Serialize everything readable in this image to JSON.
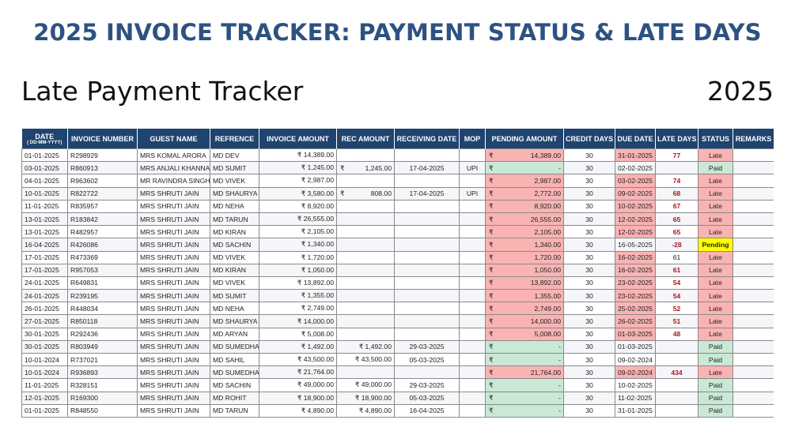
{
  "header": {
    "title": "2025 INVOICE TRACKER: PAYMENT STATUS & LATE DAYS",
    "subtitle": "Late Payment Tracker",
    "year": "2025"
  },
  "currency": "₹",
  "colors": {
    "title": "#2d5282",
    "header_bg": "#1f446f",
    "late": "#f9b3b3",
    "paid": "#c9e8d6",
    "pending": "#ffff00",
    "late_days_text": "#b4141b"
  },
  "table": {
    "columns": [
      "DATE",
      "INVOICE NUMBER",
      "GUEST NAME",
      "REFRENCE",
      "INVOICE AMOUNT",
      "REC AMOUNT",
      "RECEIVING DATE",
      "MOP",
      "PENDING AMOUNT",
      "CREDIT DAYS",
      "DUE DATE",
      "LATE DAYS",
      "STATUS",
      "REMARKS"
    ],
    "date_format": "( DD-MM-YYYY)",
    "rows": [
      {
        "date": "01-01-2025",
        "invoice": "R298929",
        "guest": "MRS KOMAL ARORA",
        "ref": "MD DEV",
        "inv_amount": "₹ 14,389.00",
        "rec_amount": "",
        "rec_amount_sep": false,
        "rec_date": "",
        "mop": "",
        "pending": "14,389.00",
        "credit": "30",
        "due": "31-01-2025",
        "late": "77",
        "late_hi": true,
        "status": "Late",
        "remarks": ""
      },
      {
        "date": "03-01-2025",
        "invoice": "R860913",
        "guest": "MRS ANJALI KHANNA",
        "ref": "MD SUMIT",
        "inv_amount": "₹ 1,245.00",
        "rec_amount": "1,245.00",
        "rec_amount_sep": true,
        "rec_date": "17-04-2025",
        "mop": "UPI",
        "pending": "-",
        "credit": "30",
        "due": "02-02-2025",
        "late": "",
        "late_hi": false,
        "status": "Paid",
        "remarks": ""
      },
      {
        "date": "04-01-2025",
        "invoice": "R963602",
        "guest": "MR RAVINDRA SINGH",
        "ref": "MD VIVEK",
        "inv_amount": "₹ 2,987.00",
        "rec_amount": "",
        "rec_amount_sep": false,
        "rec_date": "",
        "mop": "",
        "pending": "2,987.00",
        "credit": "30",
        "due": "03-02-2025",
        "late": "74",
        "late_hi": true,
        "status": "Late",
        "remarks": ""
      },
      {
        "date": "10-01-2025",
        "invoice": "R822722",
        "guest": "MRS SHRUTI JAIN",
        "ref": "MD SHAURYA",
        "inv_amount": "₹ 3,580.00",
        "rec_amount": "808.00",
        "rec_amount_sep": true,
        "rec_date": "17-04-2025",
        "mop": "UPI",
        "pending": "2,772.00",
        "credit": "30",
        "due": "09-02-2025",
        "late": "68",
        "late_hi": true,
        "status": "Late",
        "remarks": ""
      },
      {
        "date": "11-01-2025",
        "invoice": "R835957",
        "guest": "MRS SHRUTI JAIN",
        "ref": "MD NEHA",
        "inv_amount": "₹ 8,920.00",
        "rec_amount": "",
        "rec_amount_sep": false,
        "rec_date": "",
        "mop": "",
        "pending": "8,920.00",
        "credit": "30",
        "due": "10-02-2025",
        "late": "67",
        "late_hi": true,
        "status": "Late",
        "remarks": ""
      },
      {
        "date": "13-01-2025",
        "invoice": "R183842",
        "guest": "MRS SHRUTI JAIN",
        "ref": "MD TARUN",
        "inv_amount": "₹ 26,555.00",
        "rec_amount": "",
        "rec_amount_sep": false,
        "rec_date": "",
        "mop": "",
        "pending": "26,555.00",
        "credit": "30",
        "due": "12-02-2025",
        "late": "65",
        "late_hi": true,
        "status": "Late",
        "remarks": ""
      },
      {
        "date": "13-01-2025",
        "invoice": "R482957",
        "guest": "MRS SHRUTI JAIN",
        "ref": "MD KIRAN",
        "inv_amount": "₹ 2,105.00",
        "rec_amount": "",
        "rec_amount_sep": false,
        "rec_date": "",
        "mop": "",
        "pending": "2,105.00",
        "credit": "30",
        "due": "12-02-2025",
        "late": "65",
        "late_hi": true,
        "status": "Late",
        "remarks": ""
      },
      {
        "date": "16-04-2025",
        "invoice": "R426086",
        "guest": "MRS SHRUTI JAIN",
        "ref": "MD SACHIN",
        "inv_amount": "₹ 1,340.00",
        "rec_amount": "",
        "rec_amount_sep": false,
        "rec_date": "",
        "mop": "",
        "pending": "1,340.00",
        "credit": "30",
        "due": "16-05-2025",
        "late": "-28",
        "late_hi": true,
        "status": "Pending",
        "remarks": ""
      },
      {
        "date": "17-01-2025",
        "invoice": "R473369",
        "guest": "MRS SHRUTI JAIN",
        "ref": "MD VIVEK",
        "inv_amount": "₹ 1,720.00",
        "rec_amount": "",
        "rec_amount_sep": false,
        "rec_date": "",
        "mop": "",
        "pending": "1,720.00",
        "credit": "30",
        "due": "16-02-2025",
        "late": "61",
        "late_hi": false,
        "status": "Late",
        "remarks": ""
      },
      {
        "date": "17-01-2025",
        "invoice": "R957053",
        "guest": "MRS SHRUTI JAIN",
        "ref": "MD KIRAN",
        "inv_amount": "₹ 1,050.00",
        "rec_amount": "",
        "rec_amount_sep": false,
        "rec_date": "",
        "mop": "",
        "pending": "1,050.00",
        "credit": "30",
        "due": "16-02-2025",
        "late": "61",
        "late_hi": true,
        "status": "Late",
        "remarks": ""
      },
      {
        "date": "24-01-2025",
        "invoice": "R649831",
        "guest": "MRS SHRUTI JAIN",
        "ref": "MD VIVEK",
        "inv_amount": "₹ 13,892.00",
        "rec_amount": "",
        "rec_amount_sep": false,
        "rec_date": "",
        "mop": "",
        "pending": "13,892.00",
        "credit": "30",
        "due": "23-02-2025",
        "late": "54",
        "late_hi": true,
        "status": "Late",
        "remarks": ""
      },
      {
        "date": "24-01-2025",
        "invoice": "R239195",
        "guest": "MRS SHRUTI JAIN",
        "ref": "MD SUMIT",
        "inv_amount": "₹ 1,355.00",
        "rec_amount": "",
        "rec_amount_sep": false,
        "rec_date": "",
        "mop": "",
        "pending": "1,355.00",
        "credit": "30",
        "due": "23-02-2025",
        "late": "54",
        "late_hi": true,
        "status": "Late",
        "remarks": ""
      },
      {
        "date": "26-01-2025",
        "invoice": "R448034",
        "guest": "MRS SHRUTI JAIN",
        "ref": "MD NEHA",
        "inv_amount": "₹ 2,749.00",
        "rec_amount": "",
        "rec_amount_sep": false,
        "rec_date": "",
        "mop": "",
        "pending": "2,749.00",
        "credit": "30",
        "due": "25-02-2025",
        "late": "52",
        "late_hi": true,
        "status": "Late",
        "remarks": ""
      },
      {
        "date": "27-01-2025",
        "invoice": "R850118",
        "guest": "MRS SHRUTI JAIN",
        "ref": "MD SHAURYA",
        "inv_amount": "₹ 14,000.00",
        "rec_amount": "",
        "rec_amount_sep": false,
        "rec_date": "",
        "mop": "",
        "pending": "14,000.00",
        "credit": "30",
        "due": "26-02-2025",
        "late": "51",
        "late_hi": true,
        "status": "Late",
        "remarks": ""
      },
      {
        "date": "30-01-2025",
        "invoice": "R292436",
        "guest": "MRS SHRUTI JAIN",
        "ref": "MD ARYAN",
        "inv_amount": "₹ 5,008.00",
        "rec_amount": "",
        "rec_amount_sep": false,
        "rec_date": "",
        "mop": "",
        "pending": "5,008.00",
        "credit": "30",
        "due": "01-03-2025",
        "late": "48",
        "late_hi": true,
        "status": "Late",
        "remarks": ""
      },
      {
        "date": "30-01-2025",
        "invoice": "R803949",
        "guest": "MRS SHRUTI JAIN",
        "ref": "MD SUMEDHA",
        "inv_amount": "₹ 1,492.00",
        "rec_amount": "₹ 1,492.00",
        "rec_amount_sep": false,
        "rec_date": "29-03-2025",
        "mop": "",
        "pending": "-",
        "credit": "30",
        "due": "01-03-2025",
        "late": "",
        "late_hi": false,
        "status": "Paid",
        "remarks": ""
      },
      {
        "date": "10-01-2024",
        "invoice": "R737021",
        "guest": "MRS SHRUTI JAIN",
        "ref": "MD SAHIL",
        "inv_amount": "₹ 43,500.00",
        "rec_amount": "₹ 43,500.00",
        "rec_amount_sep": false,
        "rec_date": "05-03-2025",
        "mop": "",
        "pending": "-",
        "credit": "30",
        "due": "09-02-2024",
        "late": "",
        "late_hi": false,
        "status": "Paid",
        "remarks": ""
      },
      {
        "date": "10-01-2024",
        "invoice": "R936893",
        "guest": "MRS SHRUTI JAIN",
        "ref": "MD SUMEDHA",
        "inv_amount": "₹ 21,764.00",
        "rec_amount": "",
        "rec_amount_sep": false,
        "rec_date": "",
        "mop": "",
        "pending": "21,764.00",
        "credit": "30",
        "due": "09-02-2024",
        "late": "434",
        "late_hi": true,
        "status": "Late",
        "remarks": ""
      },
      {
        "date": "11-01-2025",
        "invoice": "R328151",
        "guest": "MRS SHRUTI JAIN",
        "ref": "MD SACHIN",
        "inv_amount": "₹ 49,000.00",
        "rec_amount": "₹ 49,000.00",
        "rec_amount_sep": false,
        "rec_date": "29-03-2025",
        "mop": "",
        "pending": "-",
        "credit": "30",
        "due": "10-02-2025",
        "late": "",
        "late_hi": false,
        "status": "Paid",
        "remarks": ""
      },
      {
        "date": "12-01-2025",
        "invoice": "R169300",
        "guest": "MRS SHRUTI JAIN",
        "ref": "MD ROHIT",
        "inv_amount": "₹ 18,900.00",
        "rec_amount": "₹ 18,900.00",
        "rec_amount_sep": false,
        "rec_date": "05-03-2025",
        "mop": "",
        "pending": "-",
        "credit": "30",
        "due": "11-02-2025",
        "late": "",
        "late_hi": false,
        "status": "Paid",
        "remarks": ""
      },
      {
        "date": "01-01-2025",
        "invoice": "R848550",
        "guest": "MRS SHRUTI JAIN",
        "ref": "MD TARUN",
        "inv_amount": "₹ 4,890.00",
        "rec_amount": "₹ 4,890.00",
        "rec_amount_sep": false,
        "rec_date": "16-04-2025",
        "mop": "",
        "pending": "-",
        "credit": "30",
        "due": "31-01-2025",
        "late": "",
        "late_hi": false,
        "status": "Paid",
        "remarks": ""
      }
    ]
  }
}
